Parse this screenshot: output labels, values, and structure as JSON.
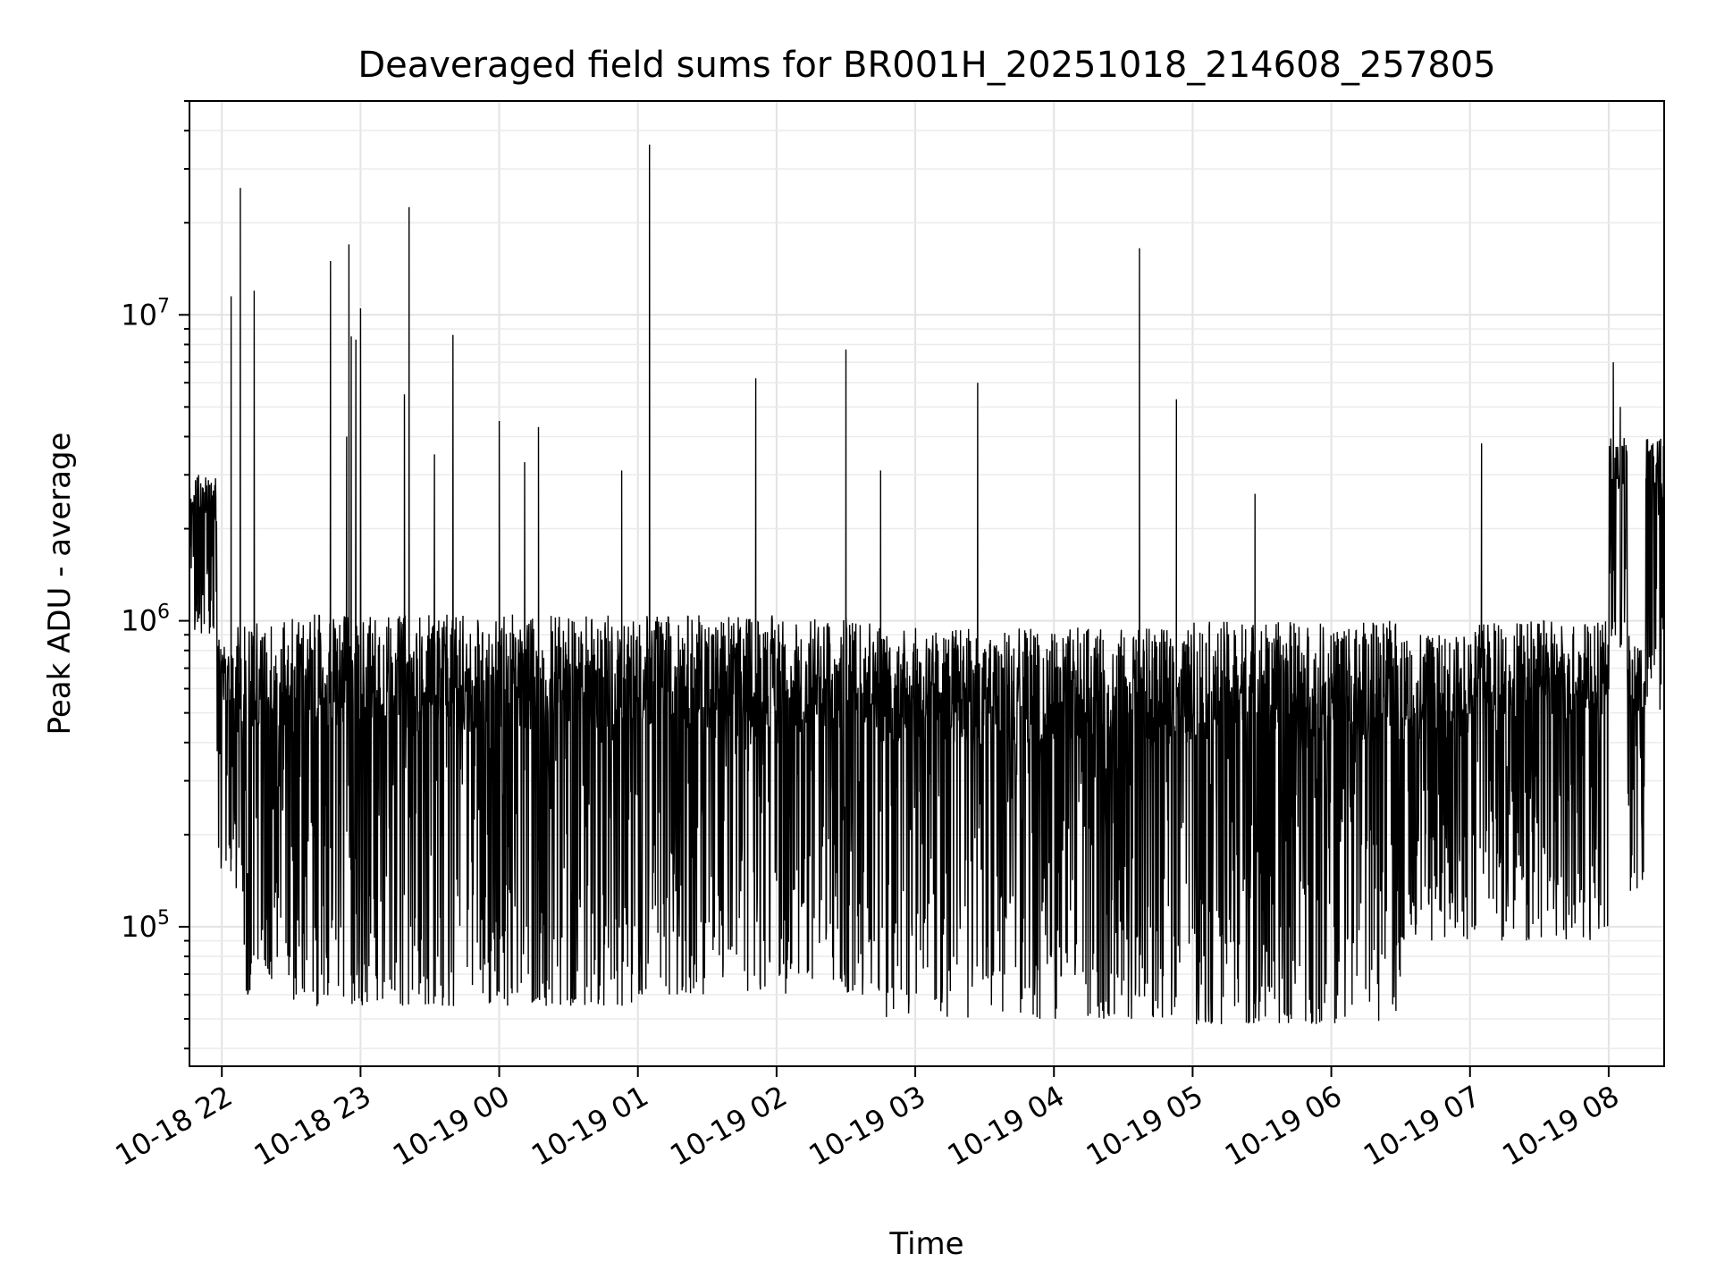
{
  "chart_data": {
    "type": "line",
    "title": "Deaveraged field sums for BR001H_20251018_214608_257805",
    "xlabel": "Time",
    "ylabel": "Peak ADU - average",
    "yscale": "log",
    "ylim": [
      35000,
      50000000
    ],
    "xlim": [
      "2025-10-18 21:46",
      "2025-10-19 08:24"
    ],
    "grid": true,
    "x_ticks": [
      {
        "time": "2025-10-18 22:00",
        "label": "10-18 22"
      },
      {
        "time": "2025-10-18 23:00",
        "label": "10-18 23"
      },
      {
        "time": "2025-10-19 00:00",
        "label": "10-19 00"
      },
      {
        "time": "2025-10-19 01:00",
        "label": "10-19 01"
      },
      {
        "time": "2025-10-19 02:00",
        "label": "10-19 02"
      },
      {
        "time": "2025-10-19 03:00",
        "label": "10-19 03"
      },
      {
        "time": "2025-10-19 04:00",
        "label": "10-19 04"
      },
      {
        "time": "2025-10-19 05:00",
        "label": "10-19 05"
      },
      {
        "time": "2025-10-19 06:00",
        "label": "10-19 06"
      },
      {
        "time": "2025-10-19 07:00",
        "label": "10-19 07"
      },
      {
        "time": "2025-10-19 08:00",
        "label": "10-19 08"
      }
    ],
    "y_ticks": [
      {
        "value": 100000,
        "base": "10",
        "exp": "5"
      },
      {
        "value": 1000000,
        "base": "10",
        "exp": "6"
      },
      {
        "value": 10000000,
        "base": "10",
        "exp": "7"
      }
    ],
    "series": [
      {
        "color": "#000000",
        "baseline_segments": [
          {
            "start": "2025-10-18 21:46",
            "end": "2025-10-18 21:58",
            "low": 900000,
            "high": 3000000
          },
          {
            "start": "2025-10-18 21:58",
            "end": "2025-10-18 22:06",
            "low": 150000,
            "high": 900000
          },
          {
            "start": "2025-10-18 22:06",
            "end": "2025-10-18 22:30",
            "low": 60000,
            "high": 1000000
          },
          {
            "start": "2025-10-18 22:30",
            "end": "2025-10-19 01:00",
            "low": 55000,
            "high": 1050000
          },
          {
            "start": "2025-10-19 01:00",
            "end": "2025-10-19 02:45",
            "low": 60000,
            "high": 1050000
          },
          {
            "start": "2025-10-19 02:45",
            "end": "2025-10-19 05:00",
            "low": 50000,
            "high": 950000
          },
          {
            "start": "2025-10-19 05:00",
            "end": "2025-10-19 06:30",
            "low": 48000,
            "high": 1000000
          },
          {
            "start": "2025-10-19 06:30",
            "end": "2025-10-19 07:00",
            "low": 90000,
            "high": 900000
          },
          {
            "start": "2025-10-19 07:00",
            "end": "2025-10-19 08:00",
            "low": 90000,
            "high": 1000000
          },
          {
            "start": "2025-10-19 08:00",
            "end": "2025-10-19 08:08",
            "low": 800000,
            "high": 4000000
          },
          {
            "start": "2025-10-19 08:08",
            "end": "2025-10-19 08:16",
            "low": 120000,
            "high": 900000
          },
          {
            "start": "2025-10-19 08:16",
            "end": "2025-10-19 08:24",
            "low": 500000,
            "high": 4000000
          }
        ],
        "spikes": [
          {
            "time": "2025-10-18 22:04",
            "value": 11500000
          },
          {
            "time": "2025-10-18 22:08",
            "value": 26000000
          },
          {
            "time": "2025-10-18 22:14",
            "value": 12000000
          },
          {
            "time": "2025-10-18 22:47",
            "value": 15000000
          },
          {
            "time": "2025-10-18 22:56",
            "value": 8500000
          },
          {
            "time": "2025-10-18 22:54",
            "value": 4000000
          },
          {
            "time": "2025-10-18 23:00",
            "value": 10500000
          },
          {
            "time": "2025-10-18 22:55",
            "value": 17000000
          },
          {
            "time": "2025-10-18 22:58",
            "value": 8300000
          },
          {
            "time": "2025-10-18 23:21",
            "value": 22500000
          },
          {
            "time": "2025-10-18 23:19",
            "value": 5500000
          },
          {
            "time": "2025-10-18 23:40",
            "value": 8600000
          },
          {
            "time": "2025-10-18 23:32",
            "value": 3500000
          },
          {
            "time": "2025-10-19 00:00",
            "value": 4500000
          },
          {
            "time": "2025-10-19 00:11",
            "value": 3300000
          },
          {
            "time": "2025-10-19 00:17",
            "value": 4300000
          },
          {
            "time": "2025-10-19 00:53",
            "value": 3100000
          },
          {
            "time": "2025-10-19 01:05",
            "value": 36000000
          },
          {
            "time": "2025-10-19 01:51",
            "value": 6200000
          },
          {
            "time": "2025-10-19 02:30",
            "value": 7700000
          },
          {
            "time": "2025-10-19 02:45",
            "value": 3100000
          },
          {
            "time": "2025-10-19 03:27",
            "value": 6000000
          },
          {
            "time": "2025-10-19 04:37",
            "value": 16500000
          },
          {
            "time": "2025-10-19 04:53",
            "value": 5300000
          },
          {
            "time": "2025-10-19 05:27",
            "value": 2600000
          },
          {
            "time": "2025-10-19 07:05",
            "value": 3800000
          },
          {
            "time": "2025-10-19 08:02",
            "value": 7000000
          },
          {
            "time": "2025-10-19 08:05",
            "value": 5000000
          }
        ]
      }
    ]
  }
}
